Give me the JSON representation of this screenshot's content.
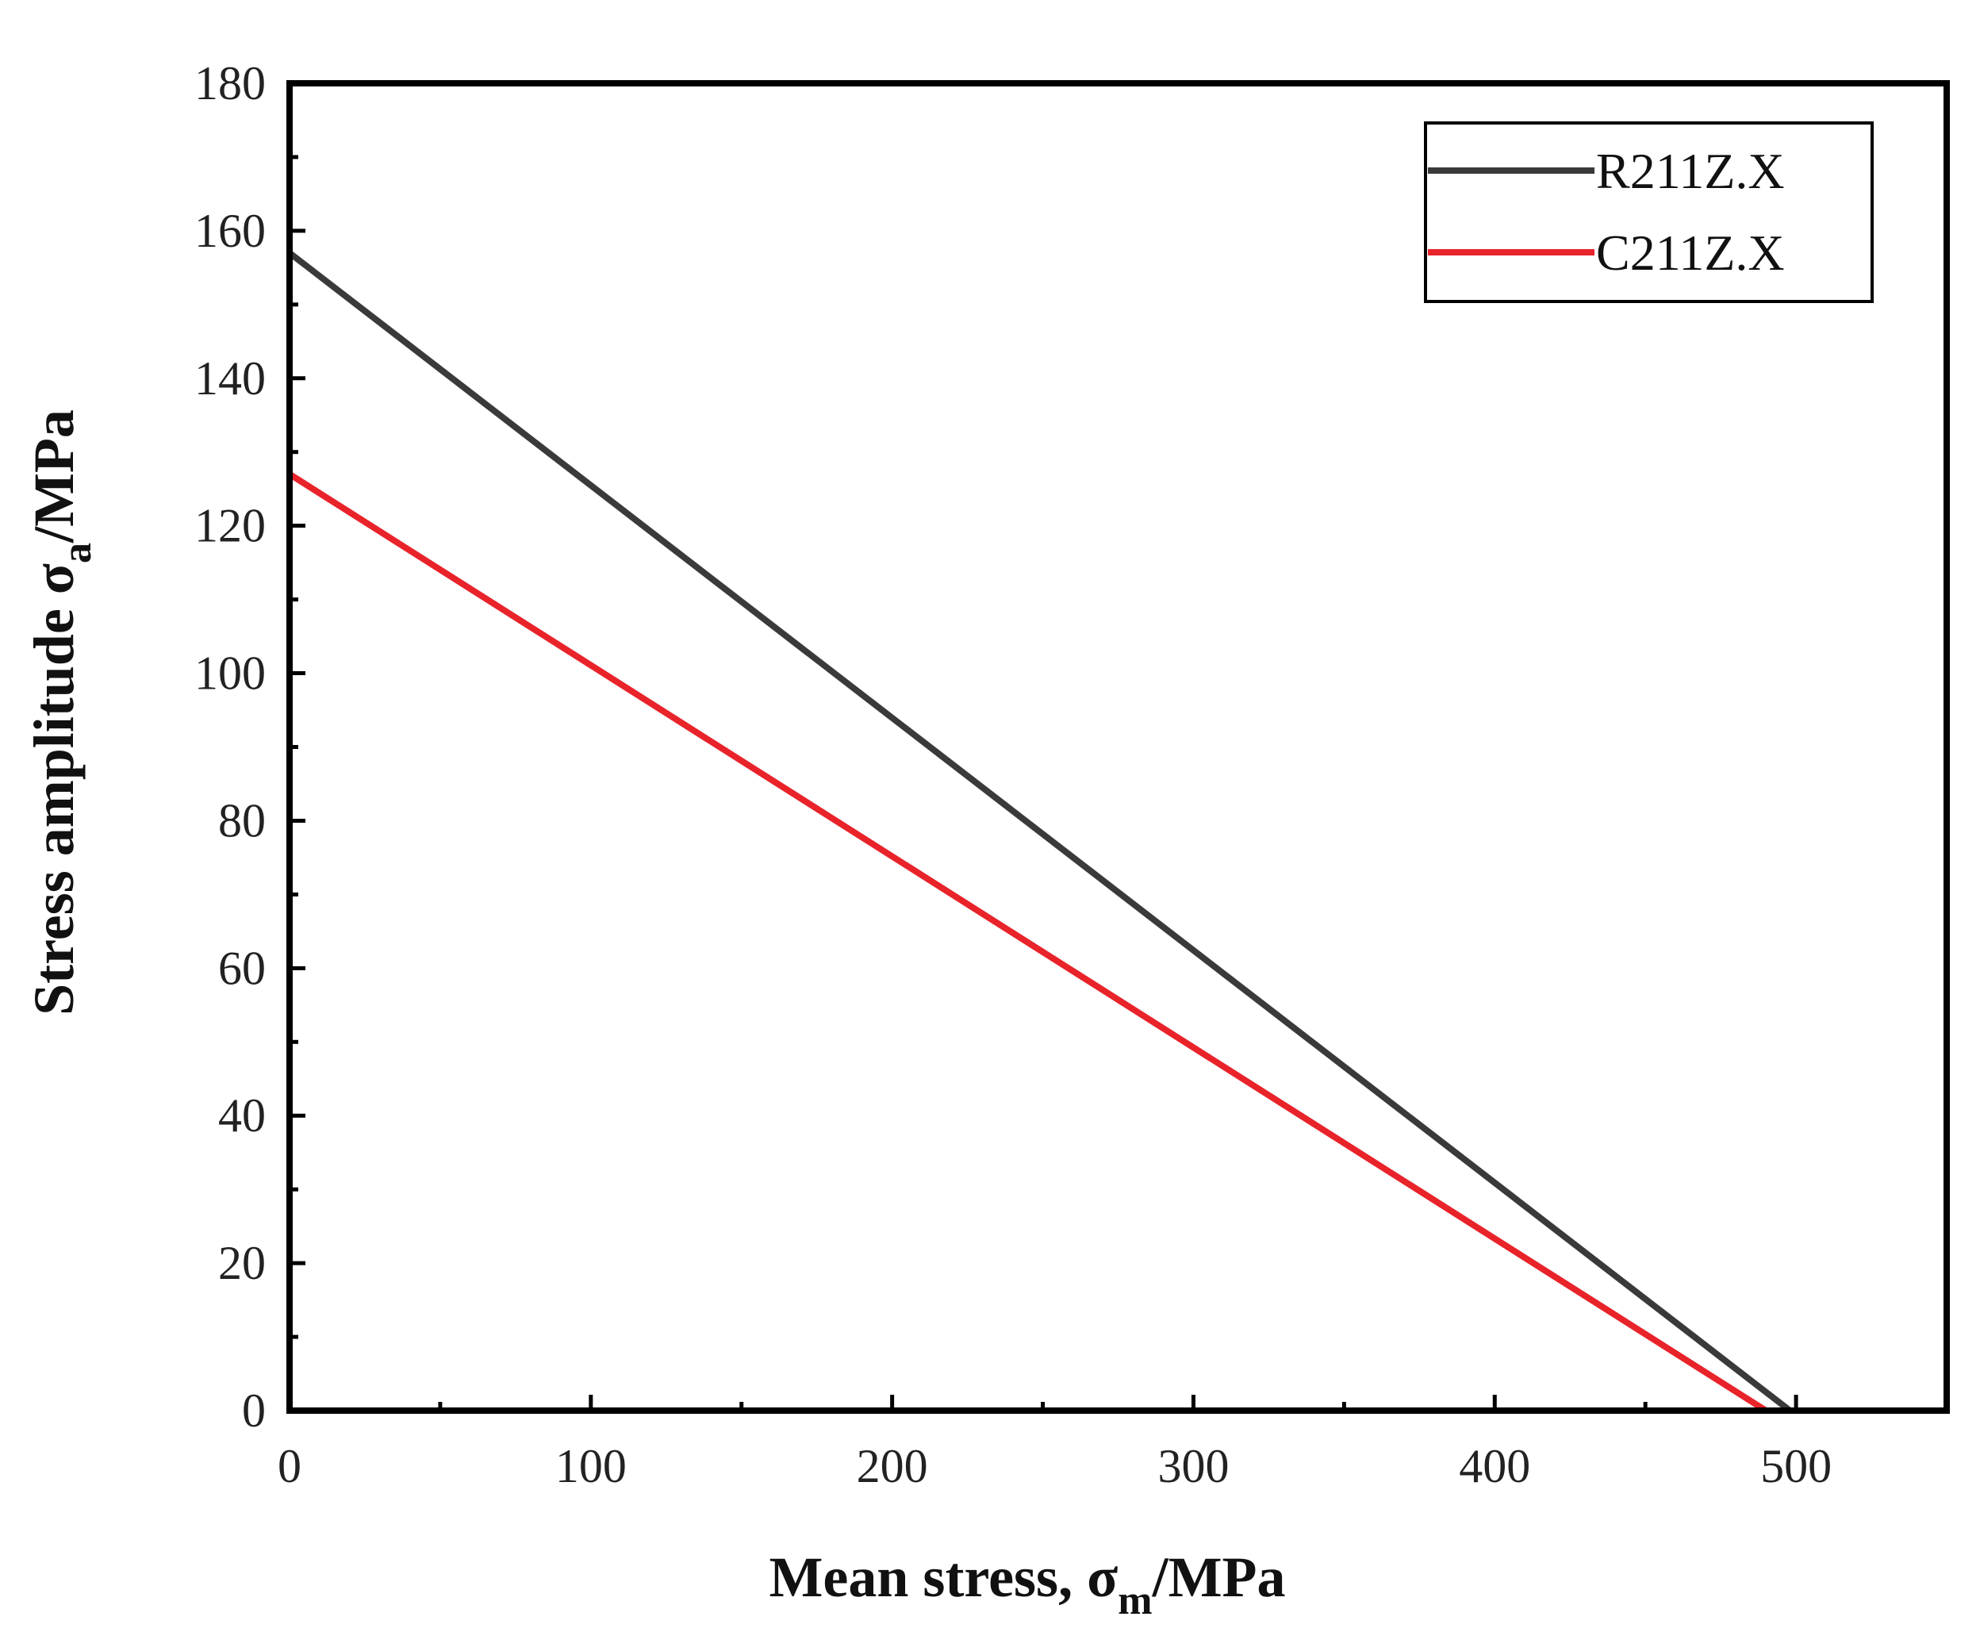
{
  "chart_data": {
    "type": "line",
    "title": "",
    "xlabel": {
      "main": "Mean stress, σ",
      "sub": "m",
      "unit": "/MPa"
    },
    "ylabel": {
      "main": "Stress amplitude σ",
      "sub": "a",
      "unit": "/MPa"
    },
    "xlim": [
      0,
      550
    ],
    "ylim": [
      0,
      180
    ],
    "x_ticks": [
      0,
      100,
      200,
      300,
      400,
      500
    ],
    "x_tick_labels": [
      "0",
      "100",
      "200",
      "300",
      "400",
      "500"
    ],
    "y_ticks": [
      0,
      20,
      40,
      60,
      80,
      100,
      120,
      140,
      160,
      180
    ],
    "y_tick_labels": [
      "0",
      "20",
      "40",
      "60",
      "80",
      "100",
      "120",
      "140",
      "160",
      "180"
    ],
    "grid": false,
    "legend_position": "top-right",
    "series": [
      {
        "name": "R211Z.X",
        "color": "#3a3a3a",
        "x": [
          0,
          498
        ],
        "y": [
          157,
          0
        ]
      },
      {
        "name": "C211Z.X",
        "color": "#e8232a",
        "x": [
          0,
          490
        ],
        "y": [
          127,
          0
        ]
      }
    ]
  }
}
